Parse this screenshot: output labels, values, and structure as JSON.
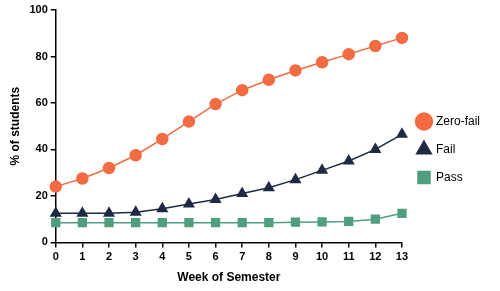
{
  "chart_data": {
    "type": "line",
    "x_label": "Week of Semester",
    "y_label": "% of students",
    "x": [
      0,
      1,
      2,
      3,
      4,
      5,
      6,
      7,
      8,
      9,
      10,
      11,
      12,
      13
    ],
    "series": [
      {
        "name": "Zero-fail",
        "color": "#f26b43",
        "marker": "circle",
        "values": [
          24,
          27.5,
          32,
          37.5,
          44.5,
          52,
          59.5,
          65.5,
          70,
          74,
          77.5,
          81,
          84.5,
          88
        ]
      },
      {
        "name": "Fail",
        "color": "#1f2a44",
        "marker": "triangle",
        "values": [
          12.5,
          12.5,
          12.5,
          13,
          14.5,
          16.5,
          18.5,
          21,
          23.5,
          27,
          31,
          35,
          40,
          46.5
        ]
      },
      {
        "name": "Pass",
        "color": "#4f9e7e",
        "marker": "square",
        "values": [
          8.5,
          8.5,
          8.5,
          8.5,
          8.5,
          8.5,
          8.5,
          8.5,
          8.5,
          8.7,
          8.8,
          9,
          10,
          12.5
        ]
      }
    ],
    "xlim": [
      0,
      13
    ],
    "xticks": [
      0,
      1,
      2,
      3,
      4,
      5,
      6,
      7,
      8,
      9,
      10,
      11,
      12,
      13
    ],
    "ylim": [
      0,
      100
    ],
    "yticks": [
      0,
      20,
      40,
      60,
      80,
      100
    ],
    "grid": false,
    "legend": "right"
  }
}
